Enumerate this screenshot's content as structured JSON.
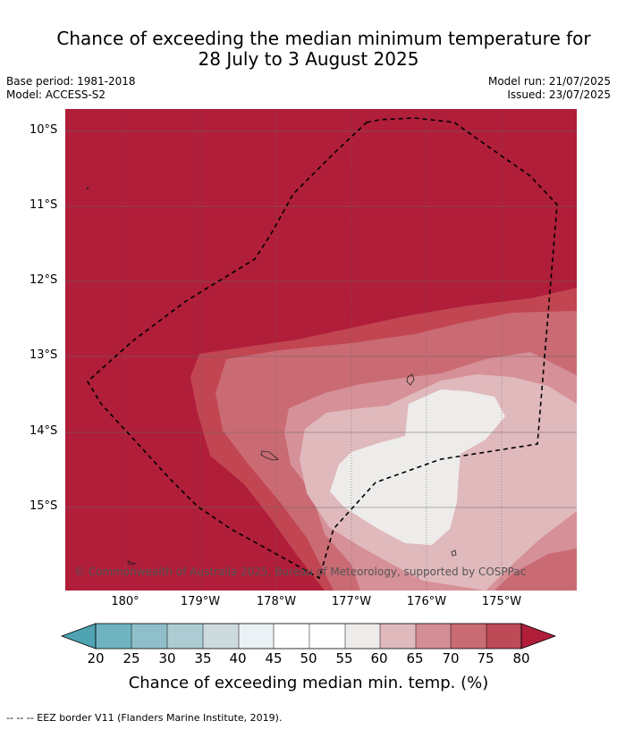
{
  "title": {
    "line1": "Chance of exceeding the median minimum temperature for",
    "line2": "28 July to 3 August 2025"
  },
  "meta": {
    "base_period": "Base period: 1981-2018",
    "model": "Model: ACCESS-S2",
    "model_run": "Model run: 21/07/2025",
    "issued": "Issued: 23/07/2025"
  },
  "axes": {
    "lat_labels": [
      "10°S",
      "11°S",
      "12°S",
      "13°S",
      "14°S",
      "15°S"
    ],
    "lon_labels": [
      "180°",
      "179°W",
      "178°W",
      "177°W",
      "176°W",
      "175°W"
    ]
  },
  "credit": "© Commonwealth of Australia 2025, Bureau of Meteorology, supported by COSPPac",
  "colorbar": {
    "labels": [
      "20",
      "25",
      "30",
      "35",
      "40",
      "45",
      "50",
      "55",
      "60",
      "65",
      "70",
      "75",
      "80"
    ],
    "colors": [
      "#4fa3b3",
      "#6fb3c0",
      "#8fbfcb",
      "#adcbd2",
      "#cddbde",
      "#ebf1f4",
      "#ffffff",
      "#ffffff",
      "#eeeceb",
      "#e0b9bd",
      "#d48f96",
      "#c96b73",
      "#bd4a57",
      "#b01e3a"
    ],
    "title": "Chance of exceeding median min. temp. (%)"
  },
  "footnote": "--  --  -- EEZ border V11 (Flanders Marine Institute, 2019).",
  "map_colors": {
    "band_80": "#b01e3a",
    "band_75": "#c24552",
    "band_70": "#ca6a73",
    "band_65": "#d69097",
    "band_60": "#e0b9bd",
    "band_55": "#eeecea",
    "grid": "#666666",
    "eez": "#000000"
  }
}
